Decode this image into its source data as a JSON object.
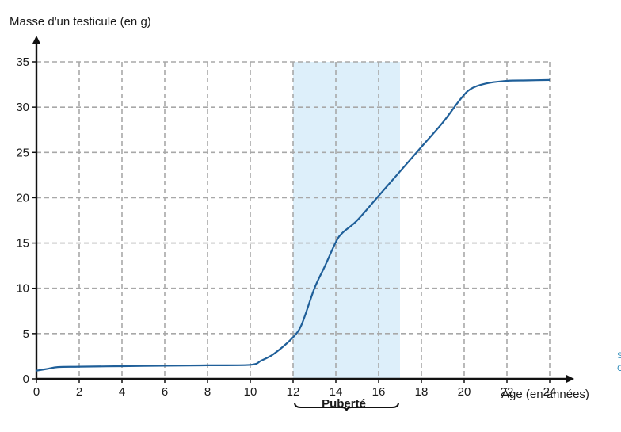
{
  "chart_data": {
    "type": "line",
    "title": "",
    "ylabel": "Masse d'un testicule (en g)",
    "xlabel": "Âge (en années)",
    "xlim": [
      0,
      24
    ],
    "ylim": [
      0,
      35
    ],
    "x_ticks": [
      0,
      2,
      4,
      6,
      8,
      10,
      12,
      14,
      16,
      18,
      20,
      22,
      24
    ],
    "y_ticks": [
      0,
      5,
      10,
      15,
      20,
      25,
      30,
      35
    ],
    "grid": true,
    "series": [
      {
        "x": [
          0,
          0.5,
          1,
          2,
          4,
          6,
          8,
          10,
          10.5,
          11,
          11.5,
          12,
          12.4,
          13,
          13.5,
          14,
          14.3,
          15,
          16,
          17,
          18,
          19,
          19.8,
          20.3,
          21,
          22,
          23,
          24
        ],
        "y": [
          0.9,
          1.1,
          1.3,
          1.35,
          1.4,
          1.45,
          1.5,
          1.55,
          2,
          2.6,
          3.5,
          4.6,
          6,
          10,
          12.5,
          15.1,
          16.1,
          17.5,
          20.2,
          22.9,
          25.6,
          28.3,
          30.8,
          32,
          32.6,
          32.9,
          32.95,
          33
        ]
      }
    ],
    "highlight": {
      "x_start": 12,
      "x_end": 17,
      "label": "Puberté",
      "color": "#ddeffa"
    },
    "line_color": "#1f5f99",
    "side_text": [
      "S",
      "C"
    ]
  }
}
